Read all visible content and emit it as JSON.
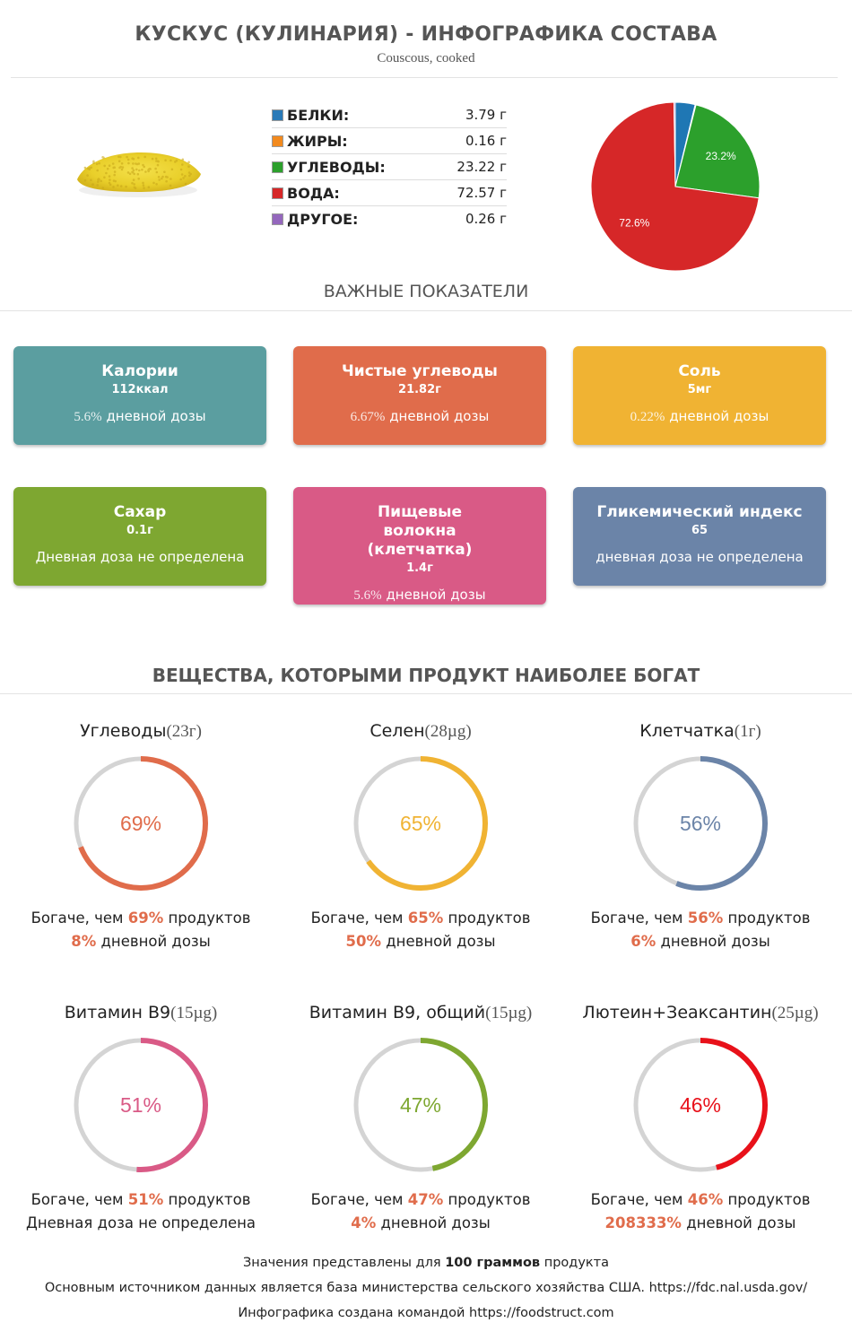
{
  "header": {
    "title": "КУСКУС (КУЛИНАРИЯ) - ИНФОГРАФИКА СОСТАВА",
    "subtitle": "Couscous, cooked"
  },
  "macros": [
    {
      "label": "БЕЛКИ:",
      "value": "3.79 г",
      "color": "#2a7ab8"
    },
    {
      "label": "ЖИРЫ:",
      "value": "0.16 г",
      "color": "#f28a1e"
    },
    {
      "label": "УГЛЕВОДЫ:",
      "value": "23.22 г",
      "color": "#2ca02c"
    },
    {
      "label": "ВОДА:",
      "value": "72.57 г",
      "color": "#d62728"
    },
    {
      "label": "ДРУГОЕ:",
      "value": "0.26 г",
      "color": "#9467bd"
    }
  ],
  "chart_data": {
    "type": "pie",
    "categories": [
      "Белки",
      "Жиры",
      "Углеводы",
      "Вода",
      "Другое"
    ],
    "values": [
      3.79,
      0.16,
      23.22,
      72.57,
      0.26
    ],
    "colors": [
      "#1f77b4",
      "#ff7f0e",
      "#2ca02c",
      "#d62728",
      "#9467bd"
    ],
    "data_labels": [
      {
        "category": "Углеводы",
        "text": "23.2%"
      },
      {
        "category": "Вода",
        "text": "72.6%"
      }
    ]
  },
  "indicators": {
    "title": "ВАЖНЫЕ ПОКАЗАТЕЛИ",
    "cards": [
      {
        "name": "Калории",
        "value": "112ккал",
        "pct": "5.6%",
        "daily": " дневной дозы",
        "color": "#5b9ea0"
      },
      {
        "name": "Чистые углеводы",
        "value": "21.82г",
        "pct": "6.67%",
        "daily": " дневной дозы",
        "color": "#e06c4b"
      },
      {
        "name": "Соль",
        "value": "5мг",
        "pct": "0.22%",
        "daily": " дневной дозы",
        "color": "#f0b333"
      },
      {
        "name": "Сахар",
        "value": "0.1г",
        "pct": "",
        "daily": "Дневная доза не определена",
        "color": "#7ea731"
      },
      {
        "name": "Пищевые волокна (клетчатка)",
        "value": "1.4г",
        "pct": "5.6%",
        "daily": " дневной дозы",
        "color": "#d95a86"
      },
      {
        "name": "Гликемический индекс",
        "value": "65",
        "pct": "",
        "daily": "дневная доза не определена",
        "color": "#6b84a8"
      }
    ]
  },
  "rich": {
    "title": "ВЕЩЕСТВА, КОТОРЫМИ ПРОДУКТ НАИБОЛЕЕ БОГАТ",
    "items": [
      {
        "name": "Углеводы",
        "amount": "(23г)",
        "percent": 69,
        "percent_label": "69%",
        "color": "#e06c4b",
        "richer_prefix": "Богаче, чем ",
        "richer_value": "69%",
        "richer_suffix": " продуктов",
        "daily_value": "8%",
        "daily_suffix": " дневной дозы"
      },
      {
        "name": "Селен",
        "amount": "(28µg)",
        "percent": 65,
        "percent_label": "65%",
        "color": "#f0b333",
        "richer_prefix": "Богаче, чем ",
        "richer_value": "65%",
        "richer_suffix": " продуктов",
        "daily_value": "50%",
        "daily_suffix": " дневной дозы"
      },
      {
        "name": "Клетчатка",
        "amount": "(1г)",
        "percent": 56,
        "percent_label": "56%",
        "color": "#6b84a8",
        "richer_prefix": "Богаче, чем ",
        "richer_value": "56%",
        "richer_suffix": " продуктов",
        "daily_value": "6%",
        "daily_suffix": " дневной дозы"
      },
      {
        "name": "Витамин B9",
        "amount": "(15µg)",
        "percent": 51,
        "percent_label": "51%",
        "color": "#d95a86",
        "richer_prefix": "Богаче, чем ",
        "richer_value": "51%",
        "richer_suffix": " продуктов",
        "daily_value": "",
        "daily_suffix": "Дневная доза не определена"
      },
      {
        "name": "Витамин B9, общий",
        "amount": "(15µg)",
        "percent": 47,
        "percent_label": "47%",
        "color": "#7ea731",
        "richer_prefix": "Богаче, чем ",
        "richer_value": "47%",
        "richer_suffix": " продуктов",
        "daily_value": "4%",
        "daily_suffix": " дневной дозы"
      },
      {
        "name": "Лютеин+Зеаксантин",
        "amount": "(25µg)",
        "percent": 46,
        "percent_label": "46%",
        "color": "#e8111a",
        "richer_prefix": "Богаче, чем ",
        "richer_value": "46%",
        "richer_suffix": " продуктов",
        "daily_value": "208333%",
        "daily_suffix": " дневной дозы"
      }
    ]
  },
  "footer": {
    "line1_a": "Значения представлены для ",
    "line1_b": "100 ",
    "line1_c": "граммов",
    "line1_d": " продукта",
    "line2": "Основным источником данных является база министерства сельского хозяйства США. https://fdc.nal.usda.gov/",
    "line3": "Инфографика создана командой https://foodstruct.com"
  }
}
